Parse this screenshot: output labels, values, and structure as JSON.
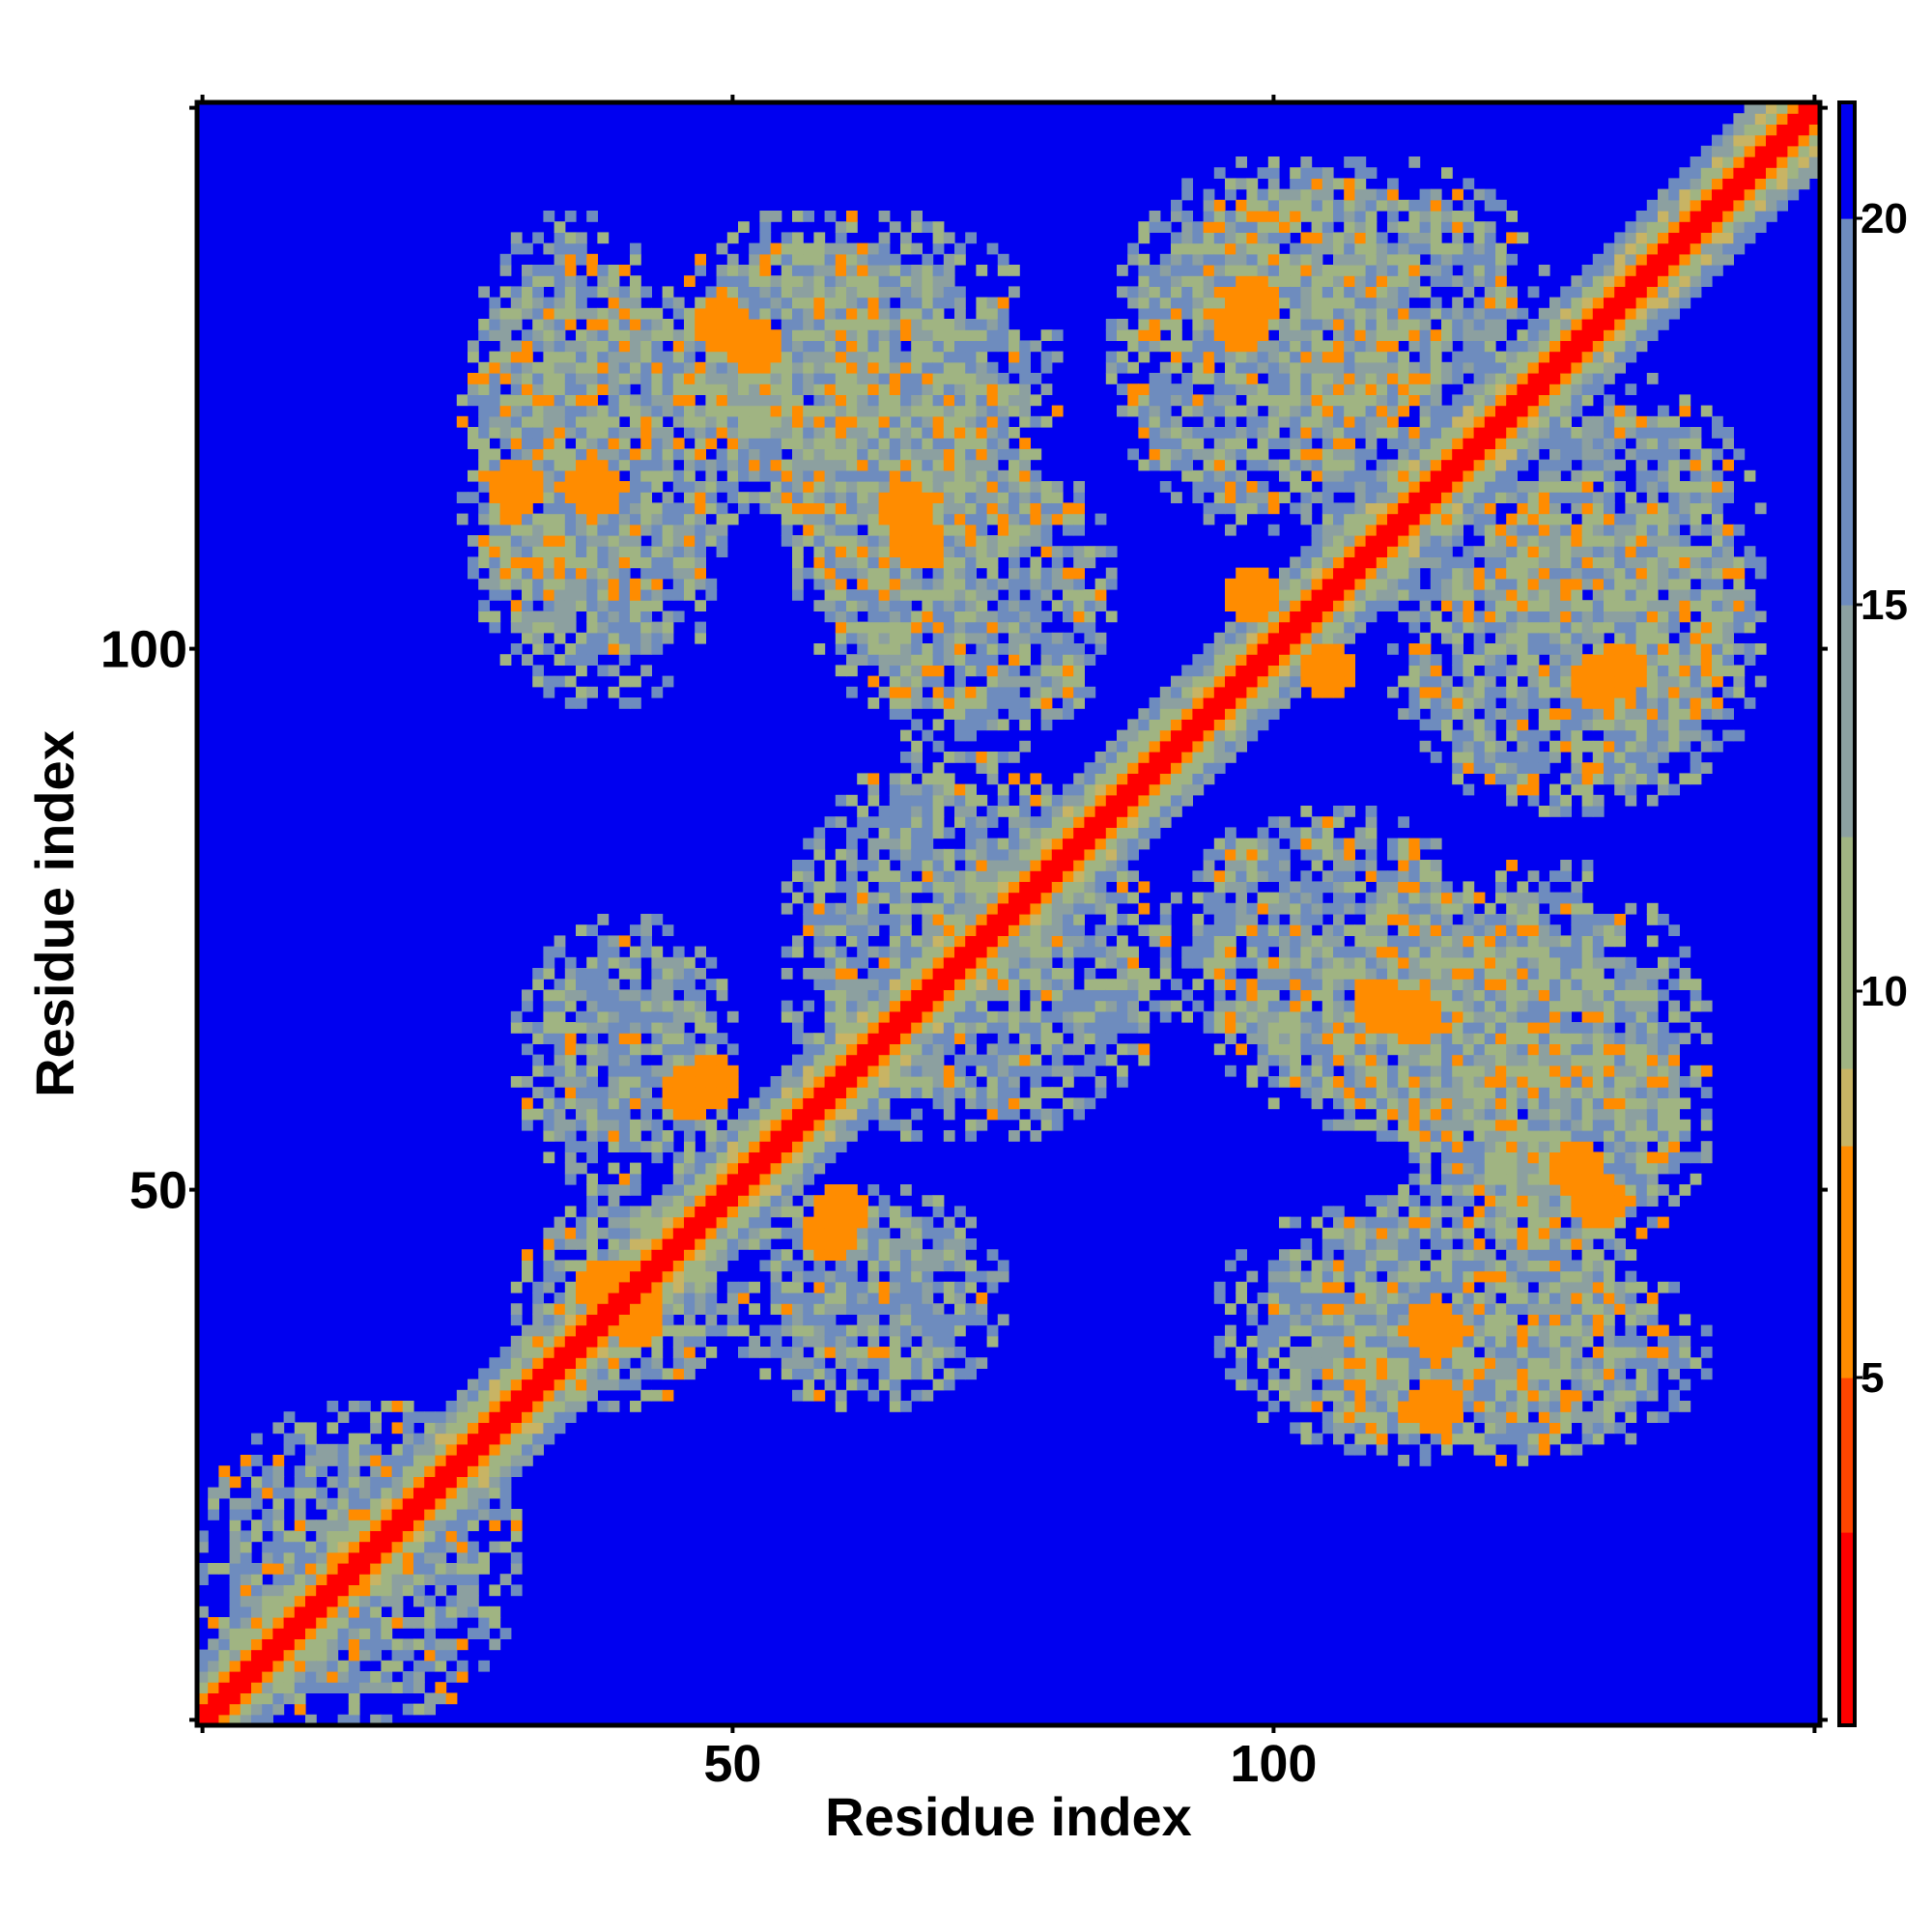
{
  "chart_data": {
    "type": "heatmap",
    "title": "",
    "xlabel": "Residue index",
    "ylabel": "Residue index",
    "n_residues": 150,
    "xlim": [
      1,
      150
    ],
    "ylim": [
      1,
      150
    ],
    "x_ticks": [
      "50",
      "100"
    ],
    "x_tick_values": [
      50,
      100
    ],
    "y_ticks": [
      "50",
      "100"
    ],
    "y_tick_values": [
      50,
      100
    ],
    "colorbar": {
      "range": [
        0.5,
        21.5
      ],
      "ticks": [
        "5",
        "10",
        "15",
        "20"
      ],
      "tick_values": [
        5,
        10,
        15,
        20
      ],
      "colors": [
        {
          "min": 0,
          "max": 3,
          "color": "#ff0000"
        },
        {
          "min": 3,
          "max": 5,
          "color": "#ff4500"
        },
        {
          "min": 5,
          "max": 8,
          "color": "#ff8c00"
        },
        {
          "min": 8,
          "max": 9,
          "color": "#c8b464"
        },
        {
          "min": 9,
          "max": 12,
          "color": "#a0b482"
        },
        {
          "min": 12,
          "max": 15,
          "color": "#8ca0a0"
        },
        {
          "min": 15,
          "max": 20,
          "color": "#6e8cbe"
        },
        {
          "min": 20,
          "max": 99,
          "color": "#0000f0"
        }
      ]
    },
    "background_color": "#0000f0",
    "contact_regions": [
      {
        "x": [
          1,
          30
        ],
        "y": [
          1,
          30
        ],
        "kind": "diagonal-band"
      },
      {
        "x": [
          30,
          50
        ],
        "y": [
          30,
          50
        ],
        "kind": "blob"
      },
      {
        "x": [
          50,
          75
        ],
        "y": [
          30,
          50
        ],
        "kind": "blob"
      },
      {
        "x": [
          100,
          140
        ],
        "y": [
          25,
          45
        ],
        "kind": "blob"
      },
      {
        "x": [
          115,
          140
        ],
        "y": [
          45,
          65
        ],
        "kind": "blob"
      },
      {
        "x": [
          95,
          135
        ],
        "y": [
          55,
          75
        ],
        "kind": "blob"
      },
      {
        "x": [
          25,
          50
        ],
        "y": [
          95,
          135
        ],
        "kind": "blob"
      },
      {
        "x": [
          45,
          80
        ],
        "y": [
          110,
          140
        ],
        "kind": "blob"
      },
      {
        "x": [
          60,
          85
        ],
        "y": [
          90,
          120
        ],
        "kind": "blob"
      },
      {
        "x": [
          90,
          125
        ],
        "y": [
          120,
          145
        ],
        "kind": "blob"
      },
      {
        "x": [
          110,
          145
        ],
        "y": [
          85,
          115
        ],
        "kind": "blob"
      },
      {
        "x": [
          55,
          90
        ],
        "y": [
          55,
          85
        ],
        "kind": "blob"
      }
    ],
    "strong_contacts": [
      {
        "x": 49,
        "y": 130,
        "value": 6
      },
      {
        "x": 30,
        "y": 115,
        "value": 6
      },
      {
        "x": 66,
        "y": 113,
        "value": 6
      },
      {
        "x": 98,
        "y": 132,
        "value": 6
      },
      {
        "x": 105,
        "y": 98,
        "value": 6
      },
      {
        "x": 130,
        "y": 97,
        "value": 6
      },
      {
        "x": 110,
        "y": 67,
        "value": 6
      },
      {
        "x": 128,
        "y": 52,
        "value": 6
      },
      {
        "x": 46,
        "y": 59,
        "value": 6
      },
      {
        "x": 60,
        "y": 48,
        "value": 6
      },
      {
        "x": 115,
        "y": 37,
        "value": 6
      },
      {
        "x": 38,
        "y": 41,
        "value": 6
      }
    ],
    "grid": false,
    "legend": "none"
  }
}
